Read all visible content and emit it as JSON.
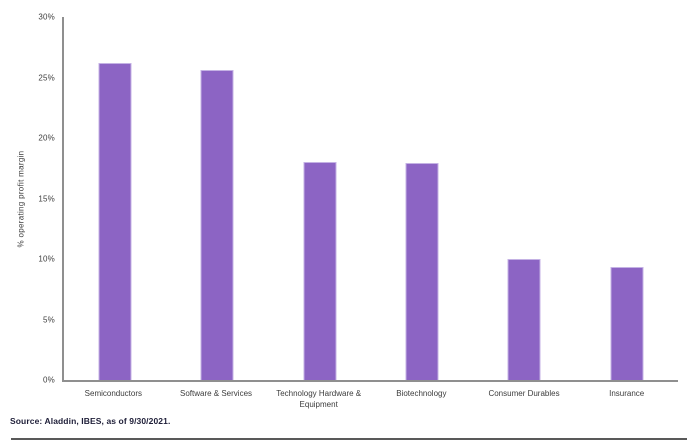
{
  "chart_data": {
    "type": "bar",
    "title": "",
    "xlabel": "",
    "ylabel": "% operating profit margin",
    "categories": [
      "Semiconductors",
      "Software & Services",
      "Technology Hardware & Equipment",
      "Biotechnology",
      "Consumer Durables",
      "Insurance"
    ],
    "values": [
      26.2,
      25.6,
      18.0,
      17.9,
      10.0,
      9.3
    ],
    "ylim": [
      0,
      30
    ],
    "ytick_step": 5,
    "ytick_labels": [
      "0%",
      "5%",
      "10%",
      "15%",
      "20%",
      "25%",
      "30%"
    ],
    "bar_color": "#8c64c4",
    "grid": false,
    "legend_position": "none"
  },
  "footer": {
    "source_note": "Source: Aladdin, IBES, as of 9/30/2021."
  }
}
